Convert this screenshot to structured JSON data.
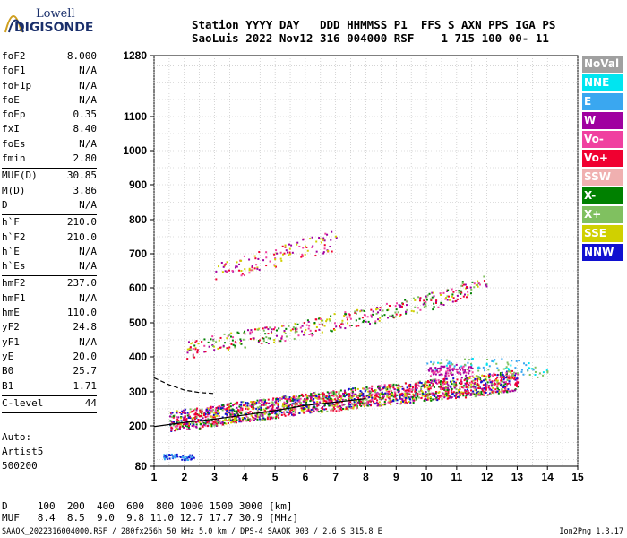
{
  "logo": {
    "line1": "Lowell",
    "line2": "DIGISONDE"
  },
  "header": {
    "line1": "Station YYYY DAY   DDD HHMMSS P1  FFS S AXN PPS IGA PS",
    "line2": "SaoLuis 2022 Nov12 316 004000 RSF    1 715 100 00- 11"
  },
  "params_group1": [
    {
      "k": "foF2",
      "v": "8.000"
    },
    {
      "k": "foF1",
      "v": "N/A"
    },
    {
      "k": "foF1p",
      "v": "N/A"
    },
    {
      "k": "foE",
      "v": "N/A"
    },
    {
      "k": "foEp",
      "v": "0.35"
    },
    {
      "k": "fxI",
      "v": "8.40"
    },
    {
      "k": "foEs",
      "v": "N/A"
    },
    {
      "k": "fmin",
      "v": "2.80"
    }
  ],
  "params_group2": [
    {
      "k": "MUF(D)",
      "v": "30.85"
    },
    {
      "k": "M(D)",
      "v": "3.86"
    },
    {
      "k": "D",
      "v": "N/A"
    }
  ],
  "params_group3": [
    {
      "k": "h`F",
      "v": "210.0"
    },
    {
      "k": "h`F2",
      "v": "210.0"
    },
    {
      "k": "h`E",
      "v": "N/A"
    },
    {
      "k": "h`Es",
      "v": "N/A"
    }
  ],
  "params_group4": [
    {
      "k": "hmF2",
      "v": "237.0"
    },
    {
      "k": "hmF1",
      "v": "N/A"
    },
    {
      "k": "hmE",
      "v": "110.0"
    },
    {
      "k": "yF2",
      "v": "24.8"
    },
    {
      "k": "yF1",
      "v": "N/A"
    },
    {
      "k": "yE",
      "v": "20.0"
    },
    {
      "k": "B0",
      "v": "25.7"
    },
    {
      "k": "B1",
      "v": "1.71"
    }
  ],
  "params_group5": [
    {
      "k": "C-level",
      "v": "44"
    }
  ],
  "auto": {
    "l1": "Auto:",
    "l2": "Artist5",
    "l3": "500200"
  },
  "legend": [
    {
      "label": "NoVal",
      "color": "#a0a0a0"
    },
    {
      "label": "NNE",
      "color": "#00e5f0"
    },
    {
      "label": "E",
      "color": "#3aa7f0"
    },
    {
      "label": "W",
      "color": "#a000a0"
    },
    {
      "label": "Vo-",
      "color": "#f040a0"
    },
    {
      "label": "Vo+",
      "color": "#f00030"
    },
    {
      "label": "SSW",
      "color": "#f0b0b0"
    },
    {
      "label": "X-",
      "color": "#008000"
    },
    {
      "label": "X+",
      "color": "#80c060"
    },
    {
      "label": "SSE",
      "color": "#d0d000"
    },
    {
      "label": "NNW",
      "color": "#1010d0"
    }
  ],
  "muf_table": {
    "line1": "D     100  200  400  600  800 1000 1500 3000 [km]",
    "line2": "MUF   8.4  8.5  9.0  9.8 11.0 12.7 17.7 30.9 [MHz]"
  },
  "footer": "SAAOK_2022316004000.RSF / 280fx256h 50 kHz 5.0 km / DPS-4 SAAOK 903 / 2.6 S 315.8 E",
  "version": "Ion2Png 1.3.17",
  "chart_data": {
    "type": "scatter",
    "x_ticks": [
      1,
      2,
      3,
      4,
      5,
      6,
      7,
      8,
      9,
      10,
      11,
      12,
      13,
      14,
      15
    ],
    "xlim": [
      1,
      15
    ],
    "y_ticks": [
      80,
      200,
      300,
      400,
      500,
      600,
      700,
      800,
      900,
      1000,
      1100,
      1280
    ],
    "ylim": [
      80,
      1280
    ],
    "grid": true,
    "legend_position": "right",
    "series": [
      {
        "label_ref": "Vo+ / X- / W / NNW (F-trace 1st hop)",
        "color": "#f00030",
        "points": [
          [
            1.5,
            215
          ],
          [
            2,
            222
          ],
          [
            2.5,
            225
          ],
          [
            3,
            232
          ],
          [
            3.5,
            240
          ],
          [
            4,
            245
          ],
          [
            4.5,
            250
          ],
          [
            5,
            255
          ],
          [
            5.5,
            262
          ],
          [
            6,
            268
          ],
          [
            6.5,
            272
          ],
          [
            7,
            276
          ],
          [
            7.5,
            282
          ],
          [
            8,
            288
          ],
          [
            8.5,
            292
          ],
          [
            9,
            295
          ],
          [
            9.5,
            300
          ],
          [
            10,
            305
          ],
          [
            10.5,
            310
          ],
          [
            11,
            312
          ],
          [
            11.5,
            318
          ],
          [
            12,
            322
          ],
          [
            12.5,
            330
          ],
          [
            13,
            335
          ]
        ]
      },
      {
        "label_ref": "2nd hop",
        "color": "#a000a0",
        "points": [
          [
            2,
            420
          ],
          [
            3,
            440
          ],
          [
            4,
            455
          ],
          [
            5,
            470
          ],
          [
            6,
            485
          ],
          [
            7,
            505
          ],
          [
            8,
            520
          ],
          [
            9,
            540
          ],
          [
            10,
            560
          ],
          [
            11,
            590
          ],
          [
            12,
            625
          ]
        ]
      },
      {
        "label_ref": "3rd hop",
        "color": "#a000a0",
        "points": [
          [
            3,
            650
          ],
          [
            4,
            670
          ],
          [
            5,
            690
          ],
          [
            6,
            720
          ],
          [
            7,
            740
          ]
        ]
      },
      {
        "label_ref": "upper NNE",
        "color": "#00e5f0",
        "points": [
          [
            10,
            380
          ],
          [
            11,
            375
          ],
          [
            12,
            380
          ],
          [
            13,
            375
          ],
          [
            14,
            350
          ]
        ]
      },
      {
        "label_ref": "upper W",
        "color": "#a000a0",
        "points": [
          [
            10,
            360
          ],
          [
            10.5,
            362
          ],
          [
            11,
            365
          ],
          [
            11.5,
            360
          ]
        ]
      },
      {
        "label_ref": "low NNW",
        "color": "#3aa7f0",
        "points": [
          [
            1.3,
            110
          ],
          [
            1.6,
            112
          ],
          [
            2,
            108
          ],
          [
            2.3,
            110
          ]
        ]
      }
    ],
    "lines": [
      {
        "style": "solid",
        "color": "#000",
        "points": [
          [
            1,
            198
          ],
          [
            2,
            210
          ],
          [
            3,
            220
          ],
          [
            4,
            232
          ],
          [
            5,
            245
          ],
          [
            6,
            260
          ],
          [
            7,
            270
          ],
          [
            8,
            280
          ]
        ]
      },
      {
        "style": "dashed",
        "color": "#000",
        "points": [
          [
            1,
            340
          ],
          [
            1.5,
            320
          ],
          [
            2,
            305
          ],
          [
            2.5,
            298
          ],
          [
            3,
            295
          ]
        ]
      }
    ]
  }
}
